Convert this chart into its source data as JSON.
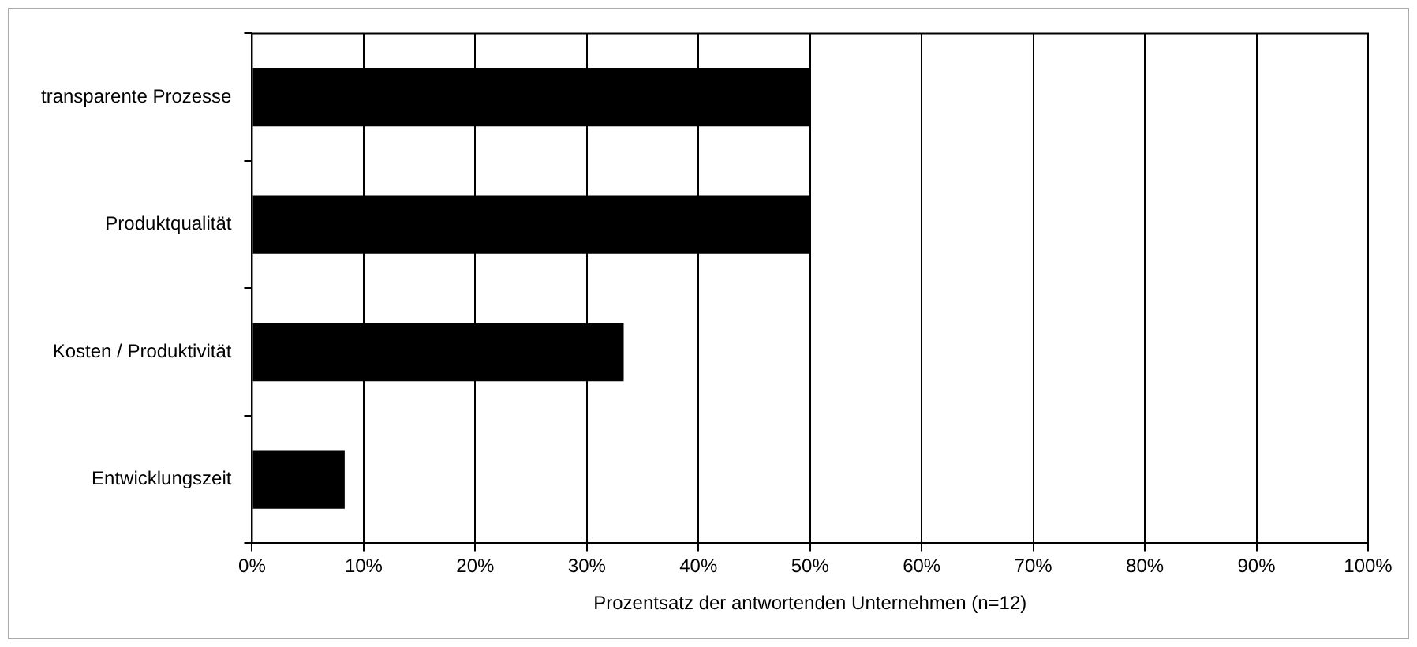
{
  "chart_data": {
    "type": "bar",
    "orientation": "horizontal",
    "xlabel": "Prozentsatz der antwortenden Unternehmen (n=12)",
    "categories": [
      "transparente Prozesse",
      "Produktqualität",
      "Kosten / Produktivität",
      "Entwicklungszeit"
    ],
    "values": [
      50,
      50,
      33.3,
      8.3
    ],
    "color": "#000000",
    "xlim": [
      0,
      100
    ],
    "xticks": [
      {
        "value": 0,
        "label": "0%"
      },
      {
        "value": 10,
        "label": "10%"
      },
      {
        "value": 20,
        "label": "20%"
      },
      {
        "value": 30,
        "label": "30%"
      },
      {
        "value": 40,
        "label": "40%"
      },
      {
        "value": 50,
        "label": "50%"
      },
      {
        "value": 60,
        "label": "60%"
      },
      {
        "value": 70,
        "label": "70%"
      },
      {
        "value": 80,
        "label": "80%"
      },
      {
        "value": 90,
        "label": "90%"
      },
      {
        "value": 100,
        "label": "100%"
      }
    ],
    "grid": "x",
    "legend": false
  }
}
